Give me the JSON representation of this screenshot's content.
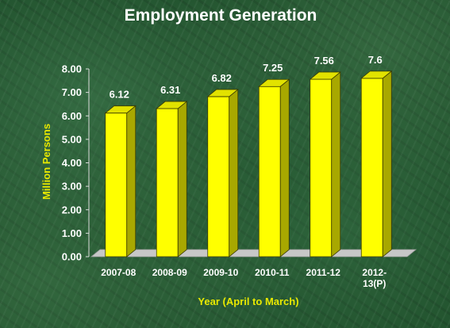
{
  "chart_data": {
    "type": "bar",
    "title": "Employment Generation",
    "xlabel": "Year (April to March)",
    "ylabel": "Million Persons",
    "categories": [
      "2007-08",
      "2008-09",
      "2009-10",
      "2010-11",
      "2011-12",
      "2012-13(P)"
    ],
    "category_lines": [
      [
        "2007-08"
      ],
      [
        "2008-09"
      ],
      [
        "2009-10"
      ],
      [
        "2010-11"
      ],
      [
        "2011-12"
      ],
      [
        "2012-",
        "13(P)"
      ]
    ],
    "values": [
      6.12,
      6.31,
      6.82,
      7.25,
      7.56,
      7.6
    ],
    "data_labels": [
      "6.12",
      "6.31",
      "6.82",
      "7.25",
      "7.56",
      "7.6"
    ],
    "ylim": [
      0,
      8
    ],
    "yticks": [
      "0.00",
      "1.00",
      "2.00",
      "3.00",
      "4.00",
      "5.00",
      "6.00",
      "7.00",
      "8.00"
    ],
    "grid": false,
    "legend": "none",
    "colors": {
      "bar_front": "#ffff00",
      "bar_side": "#a8a800",
      "bar_top": "#e2e200",
      "floor": "#c7c7c7",
      "axis_title": "#e8e800",
      "text": "#ffffff"
    }
  }
}
